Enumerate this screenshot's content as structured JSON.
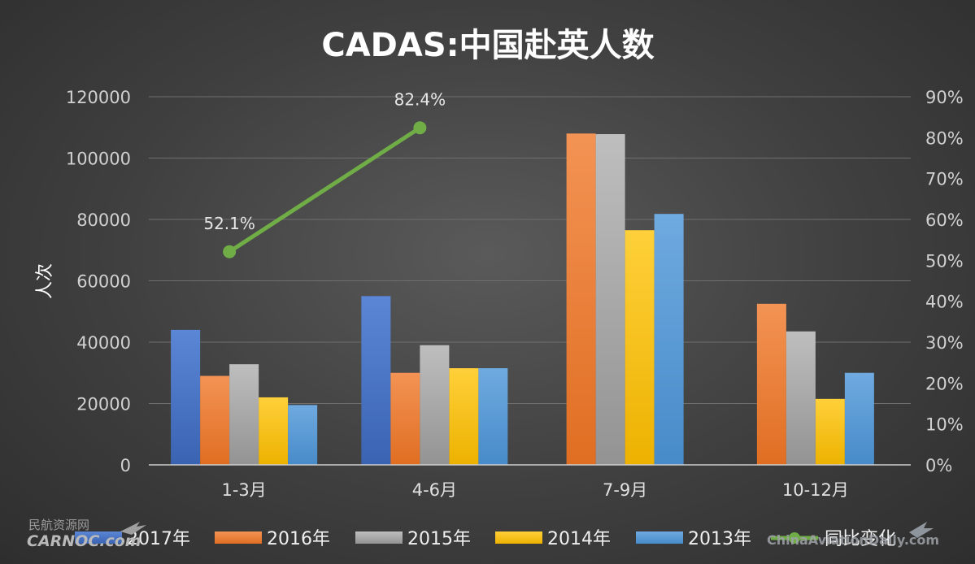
{
  "chart_data": {
    "type": "bar",
    "title": "CADAS:中国赴英人数",
    "ylabel": "人次",
    "ylim": [
      0,
      120000
    ],
    "y_ticks": [
      "0",
      "20000",
      "40000",
      "60000",
      "80000",
      "100000",
      "120000"
    ],
    "y2lim": [
      0,
      90
    ],
    "y2_ticks": [
      "0%",
      "10%",
      "20%",
      "30%",
      "40%",
      "50%",
      "60%",
      "70%",
      "80%",
      "90%"
    ],
    "categories": [
      "1-3月",
      "4-6月",
      "7-9月",
      "10-12月"
    ],
    "series": [
      {
        "name": "2017年",
        "color": "#4472C4",
        "values": [
          44000,
          55000,
          null,
          null
        ]
      },
      {
        "name": "2016年",
        "color": "#ED7D31",
        "values": [
          29000,
          30000,
          108000,
          52500
        ]
      },
      {
        "name": "2015年",
        "color": "#A5A5A5",
        "values": [
          32800,
          39000,
          107800,
          43500
        ]
      },
      {
        "name": "2014年",
        "color": "#FFC000",
        "values": [
          22000,
          31500,
          76500,
          21500
        ]
      },
      {
        "name": "2013年",
        "color": "#5B9BD5",
        "values": [
          19500,
          31500,
          81800,
          30000
        ]
      }
    ],
    "line": {
      "name": "同比变化",
      "color": "#70AD47",
      "values": [
        52.1,
        82.4,
        null,
        null
      ],
      "labels": [
        "52.1%",
        "82.4%"
      ]
    },
    "legend_position": "bottom"
  },
  "watermark": {
    "cn": "民航资源网",
    "carnoc": "CARNOC.com",
    "right": "ChinaAviationDaily.com"
  }
}
